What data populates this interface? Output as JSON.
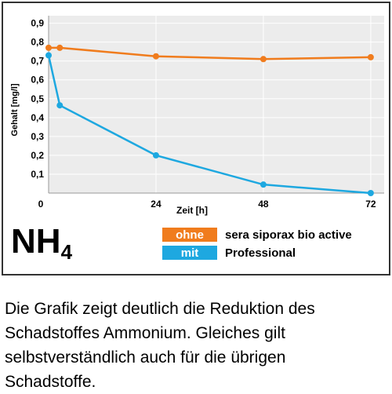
{
  "chart_data": {
    "type": "line",
    "formula": {
      "text": "NH",
      "subscript": "4"
    },
    "x_label": "Zeit [h]",
    "y_label": "Gehalt [mg/l]",
    "x": [
      0,
      2.5,
      24,
      48,
      72
    ],
    "series": [
      {
        "name": "ohne",
        "color": "#f07c1d",
        "values": [
          0.77,
          0.77,
          0.725,
          0.71,
          0.72
        ]
      },
      {
        "name": "mit",
        "color": "#1ea8e0",
        "values": [
          0.73,
          0.465,
          0.2,
          0.045,
          0
        ]
      }
    ],
    "legend_text_lines": [
      "sera siporax bio active",
      "Professional"
    ],
    "xlim": [
      0,
      75
    ],
    "xticks": [
      0,
      24,
      48,
      72
    ],
    "ylim": [
      0,
      0.94
    ],
    "yticks": [
      {
        "value": 0.1,
        "label": "0,1"
      },
      {
        "value": 0.2,
        "label": "0,2"
      },
      {
        "value": 0.3,
        "label": "0,3"
      },
      {
        "value": 0.4,
        "label": "0,4"
      },
      {
        "value": 0.5,
        "label": "0,5"
      },
      {
        "value": 0.6,
        "label": "0,6"
      },
      {
        "value": 0.7,
        "label": "0,7"
      },
      {
        "value": 0.8,
        "label": "0,8"
      },
      {
        "value": 0.9,
        "label": "0,9"
      }
    ],
    "grid": true
  },
  "caption": {
    "lines": [
      "Die Grafik zeigt deutlich die Reduktion des",
      "Schadstoffes Ammonium. Gleiches gilt",
      "selbstverständlich auch für die übrigen",
      "Schadstoffe."
    ]
  }
}
